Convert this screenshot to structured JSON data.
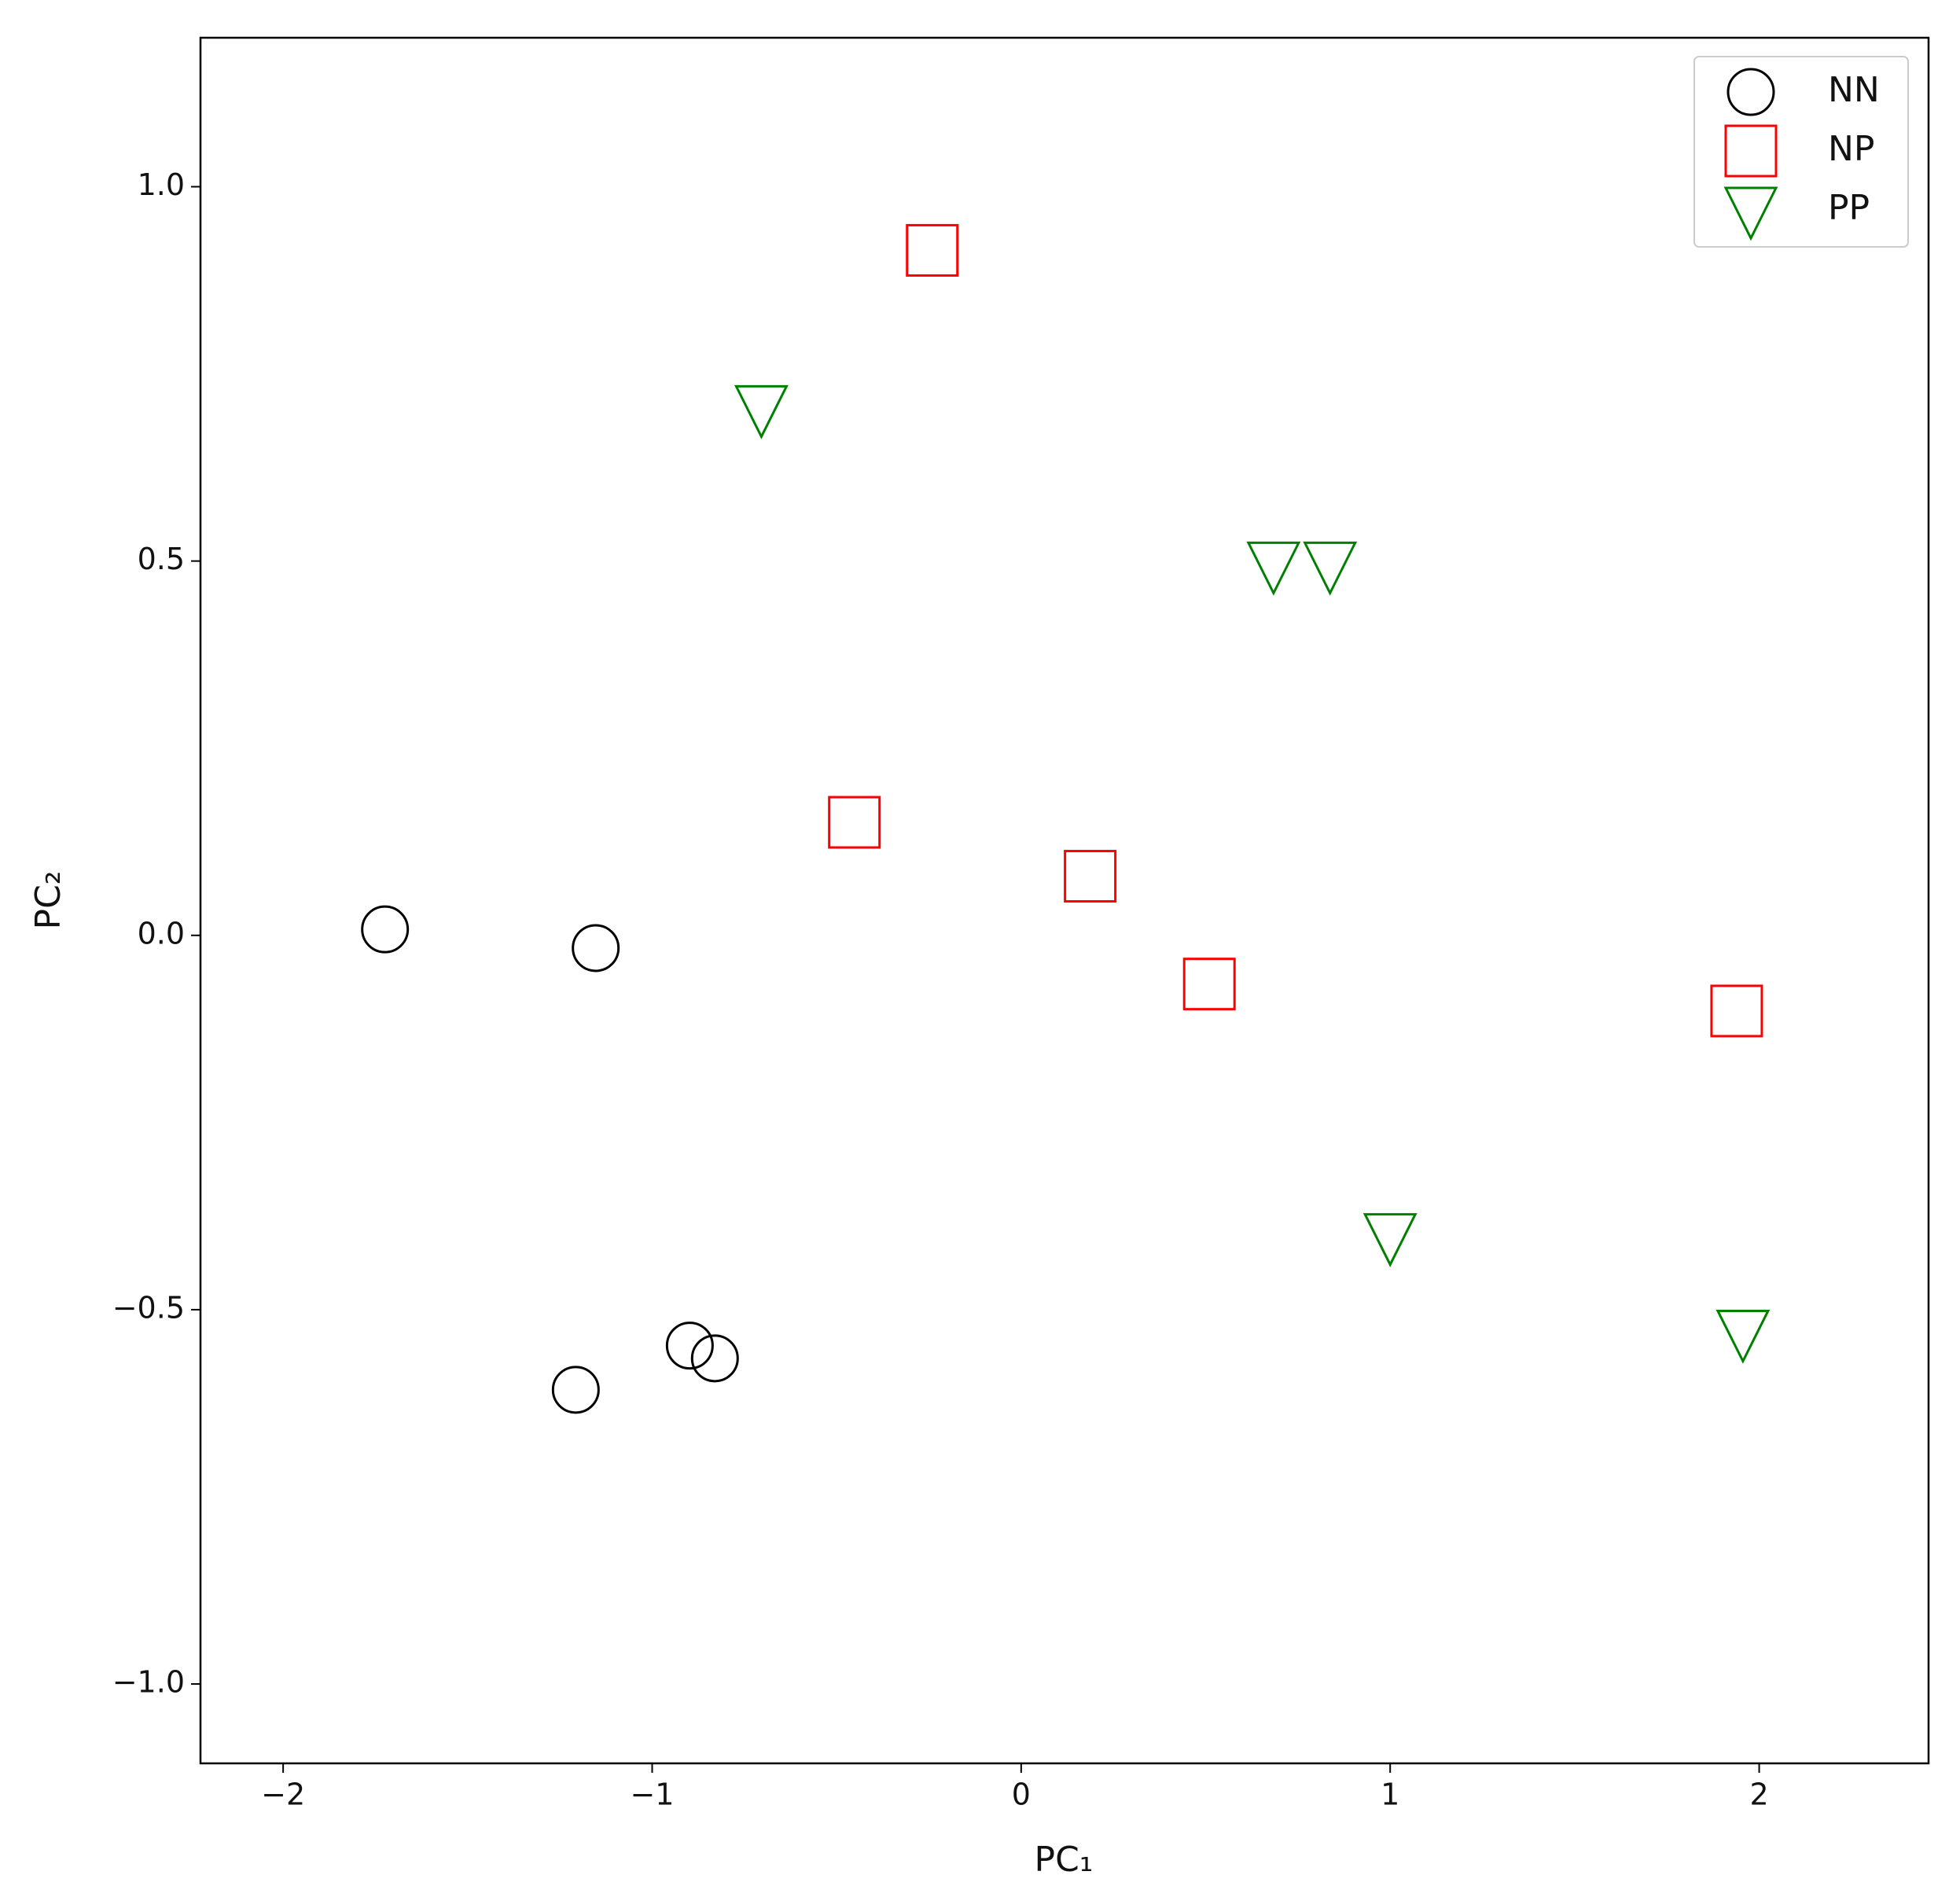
{
  "chart_data": {
    "type": "scatter",
    "xlabel": "PC₁",
    "ylabel": "PC₂",
    "xlim": [
      -2.224,
      2.459
    ],
    "ylim": [
      -1.106,
      1.199
    ],
    "xticks": [
      {
        "value": -2,
        "label": "−2"
      },
      {
        "value": -1,
        "label": "−1"
      },
      0,
      1,
      2
    ],
    "yticks": [
      {
        "value": -1,
        "label": "−1.0"
      },
      {
        "value": -0.5,
        "label": "−0.5"
      },
      {
        "value": 0,
        "label": "0.0"
      },
      0.5,
      {
        "value": 1,
        "label": "1.0"
      }
    ],
    "legend": "upper right",
    "series": [
      {
        "name": "NN",
        "color": "black",
        "marker": "circle",
        "x": [
          -1.724,
          -1.153,
          -1.207,
          -0.898,
          -0.83
        ],
        "values": [
          0.008,
          -0.017,
          -0.607,
          -0.548,
          -0.565
        ]
      },
      {
        "name": "NP",
        "color": "red",
        "marker": "square",
        "x": [
          -0.241,
          -0.452,
          0.187,
          0.51,
          1.939
        ],
        "values": [
          0.915,
          0.151,
          0.079,
          -0.065,
          -0.101
        ]
      },
      {
        "name": "PP",
        "color": "green",
        "marker": "triangle_down",
        "x": [
          -0.704,
          0.684,
          0.837,
          1.0,
          1.956
        ],
        "values": [
          0.704,
          0.495,
          0.495,
          -0.402,
          -0.531
        ]
      }
    ]
  }
}
